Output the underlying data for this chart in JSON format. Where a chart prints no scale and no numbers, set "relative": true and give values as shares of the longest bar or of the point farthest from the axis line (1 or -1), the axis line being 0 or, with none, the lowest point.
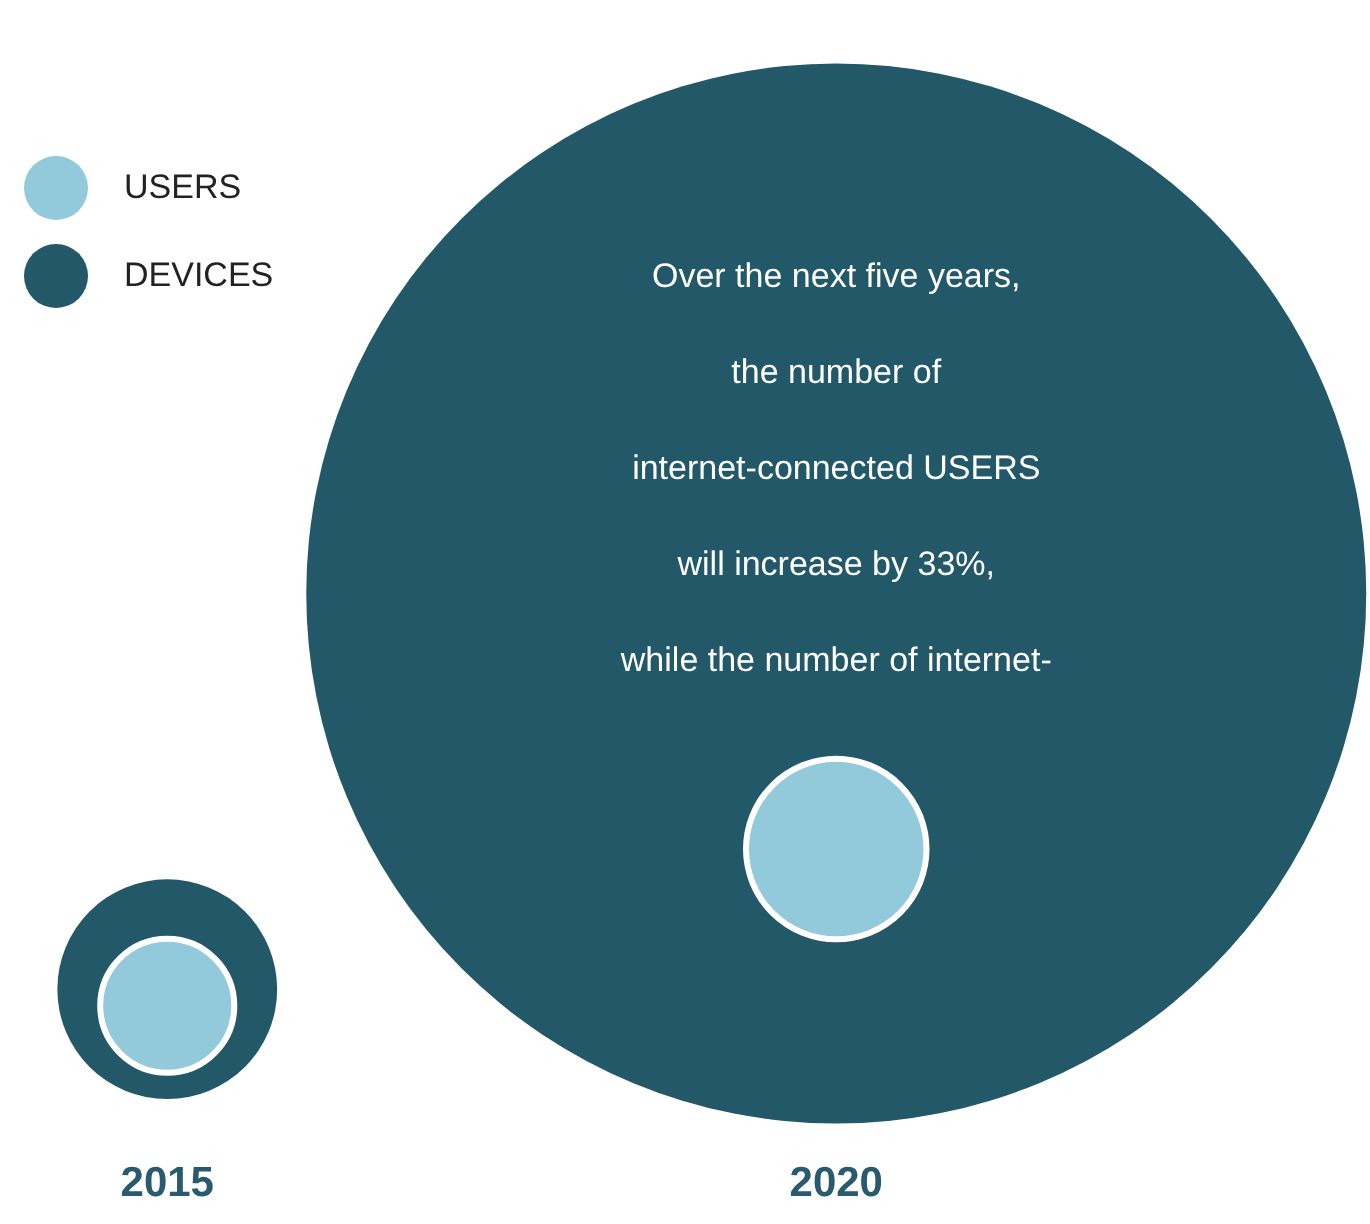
{
  "chart_data": {
    "type": "bubble",
    "relative": true,
    "categories": [
      "2015",
      "2020"
    ],
    "legend": "top left",
    "series": [
      {
        "name": "USERS",
        "color": "#93cadb",
        "values": [
          0,
          0.38
        ],
        "sizes": [
          0.016,
          0.029
        ]
      },
      {
        "name": "DEVICES",
        "color": "#225867",
        "values": [
          0.04,
          1
        ],
        "sizes": [
          0.043,
          1
        ]
      }
    ],
    "annotations": [
      "Over the next five years,\nthe number of\ninternet-connected USERS\nwill increase by 33%,\nwhile the number of internet-"
    ]
  }
}
